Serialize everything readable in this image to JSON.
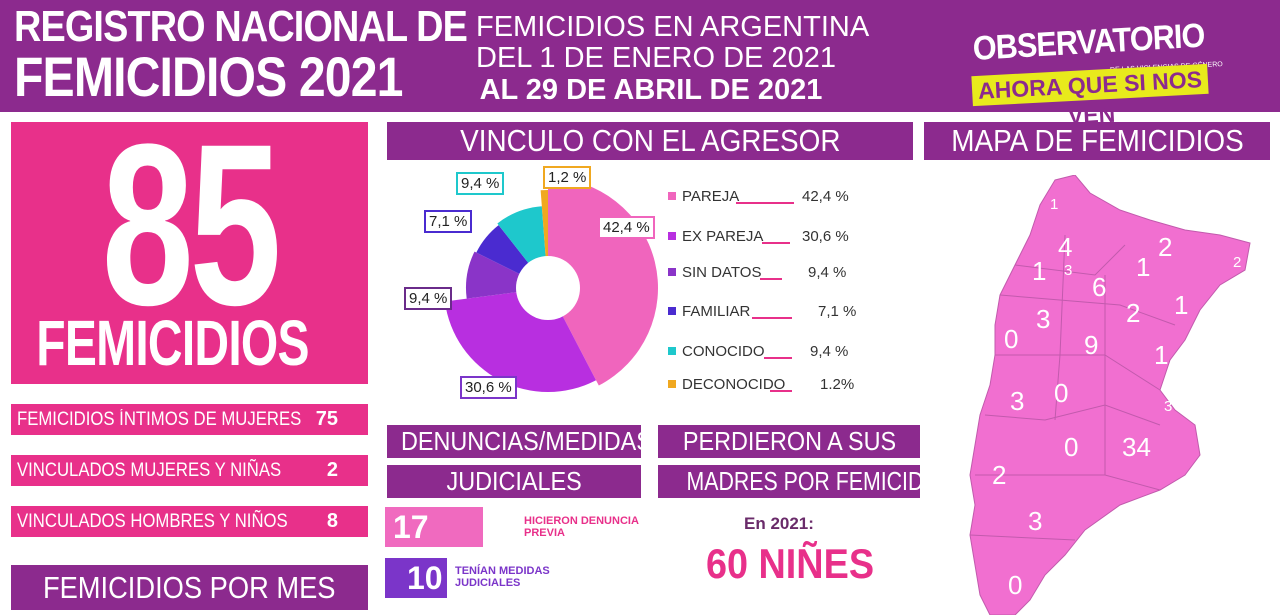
{
  "header": {
    "title_line1": "REGISTRO NACIONAL DE",
    "title_line2": "FEMICIDIOS 2021",
    "subtitle_line1": "FEMICIDIOS EN ARGENTINA",
    "subtitle_line2": "DEL 1 DE ENERO DE 2021",
    "subtitle_line3": "AL  29 DE ABRIL DE 2021",
    "logo_top": "OBSERVATORIO",
    "logo_small": "DE LAS VIOLENCIAS DE GÉNERO",
    "logo_bottom": "AHORA QUE SI NOS VEN"
  },
  "total": {
    "value": "85",
    "label": "FEMICIDIOS"
  },
  "stats": [
    {
      "label": "FEMICIDIOS ÍNTIMOS DE MUJERES",
      "value": "75"
    },
    {
      "label": "VINCULADOS MUJERES Y NIÑAS",
      "value": "2"
    },
    {
      "label": "VINCULADOS HOMBRES Y NIÑOS",
      "value": "8"
    }
  ],
  "femicidios_por_mes": "FEMICIDIOS POR MES",
  "vinculo_title": "VINCULO CON EL AGRESOR",
  "chart_data": {
    "type": "pie",
    "title": "VINCULO CON EL AGRESOR",
    "categories": [
      "PAREJA",
      "EX PAREJA",
      "SIN DATOS",
      "FAMILIAR",
      "CONOCIDO",
      "DECONOCIDO"
    ],
    "values": [
      42.4,
      30.6,
      9.4,
      7.1,
      9.4,
      1.2
    ],
    "labels": [
      "42,4 %",
      "30,6 %",
      "9,4 %",
      "7,1 %",
      "9,4 %",
      "1,2 %"
    ],
    "legend_values": [
      "42,4 %",
      "30,6 %",
      "9,4 %",
      "7,1 %",
      "9,4 %",
      "1.2%"
    ],
    "colors": [
      "#f065bd",
      "#b82fe0",
      "#8a34c8",
      "#4a2bd0",
      "#1ec8cc",
      "#f0a820"
    ],
    "donut": true,
    "legend_placement": "right"
  },
  "denuncias": {
    "title_line1": "DENUNCIAS/MEDIDAS",
    "title_line2": "JUDICIALES",
    "items": [
      {
        "value": "17",
        "text_line1": "HICIERON DENUNCIA",
        "text_line2": "PREVIA",
        "color": "#f06abf"
      },
      {
        "value": "10",
        "text_line1": "TENÍAN MEDIDAS",
        "text_line2": "JUDICIALES",
        "color": "#7b35c9"
      }
    ]
  },
  "madres": {
    "title_line1": "PERDIERON A SUS",
    "title_line2": "MADRES POR FEMICIDIO",
    "year_label": "En 2021:",
    "value": "60 NIÑES"
  },
  "mapa": {
    "title": "MAPA DE FEMICIDIOS",
    "numbers": [
      "1",
      "4",
      "3",
      "1",
      "2",
      "2",
      "1",
      "6",
      "1",
      "3",
      "2",
      "0",
      "9",
      "1",
      "3",
      "0",
      "3",
      "0",
      "34",
      "2",
      "3",
      "0"
    ]
  }
}
